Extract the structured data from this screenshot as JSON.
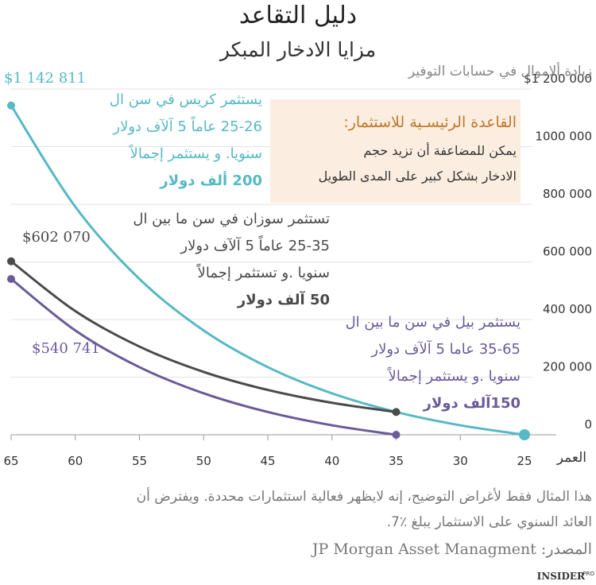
{
  "chart_data": {
    "type": "line",
    "title": "دليل التقاعد",
    "subtitle": "مزايا الادخار المبكر",
    "y_label": "زيادة ألاموال في حسابات التوفير",
    "x_label": "العمر",
    "x": [
      65,
      60,
      55,
      50,
      45,
      40,
      35,
      30,
      25
    ],
    "xlim": [
      65,
      25
    ],
    "xticks": [
      65,
      60,
      55,
      50,
      45,
      40,
      35,
      30,
      25
    ],
    "ylim": [
      0,
      1200000
    ],
    "yticks": [
      {
        "value": 0,
        "label": "0"
      },
      {
        "value": 200000,
        "label": "200 000"
      },
      {
        "value": 400000,
        "label": "400 000"
      },
      {
        "value": 600000,
        "label": "600 000"
      },
      {
        "value": 800000,
        "label": "800 000"
      },
      {
        "value": 1000000,
        "label": "1000 000"
      },
      {
        "value": 1200000,
        "label": "$1 200 000"
      }
    ],
    "grid": true,
    "series": [
      {
        "color": "#56b9c4",
        "values": [
          1142811,
          791300,
          540700,
          362000,
          234600,
          143800,
          79100,
          32900,
          0
        ],
        "value_labels": [
          "$1 142 811",
          null,
          null,
          null,
          null,
          null,
          null,
          null,
          null
        ],
        "note": [
          "يستثمر كريس في سن ال",
          "25-26 عاماً 5 آلآف دولار",
          "سنويا. و يستثمر إجمالاً",
          "200 ألف دولار"
        ]
      },
      {
        "color": "#4a4a4a",
        "values": [
          602070,
          429264,
          306059,
          218216,
          155587,
          110930,
          79092,
          null,
          null
        ],
        "value_labels": [
          "$602 070",
          null,
          null,
          null,
          null,
          null,
          null,
          null,
          null
        ],
        "note": [
          "تستثمر سوزان في سن ما بين ال",
          "25-35 عاماً  5 آلآف دولار",
          "سنويا .و تستثمر إجمالاً",
          "50 آلف دولار"
        ]
      },
      {
        "color": "#6a5a9a",
        "values": [
          540741,
          362100,
          234650,
          143860,
          79110,
          32920,
          0,
          null,
          null
        ],
        "value_labels": [
          "$540 741",
          null,
          null,
          null,
          null,
          null,
          null,
          null,
          null
        ],
        "note": [
          "يستثمر بيل في سن ما بين ال",
          "35-65 عاما 5 آلآف دولار",
          "سنويا .و يستثمر إجمالاً",
          "150آلف دولار"
        ]
      }
    ],
    "callout": {
      "title": "القاعدة الرئيسـية للاستثمار:",
      "lines": [
        "يمكن للمضاعفة أن تزيد حجم",
        "الادخار بشكل كبير على المدى الطويل"
      ]
    },
    "footnote": [
      "هذا المثال فقط لأغراض التوضيح، إنه لايظهر فعالية استثمارات محددة. ويفترض أن",
      "العائد السنوي على الاستثمار يبلغ ٪7."
    ],
    "source": "المصدر: JP Morgan Asset Managment",
    "logo": "INSIDER",
    "logo_sup": "PRO"
  }
}
